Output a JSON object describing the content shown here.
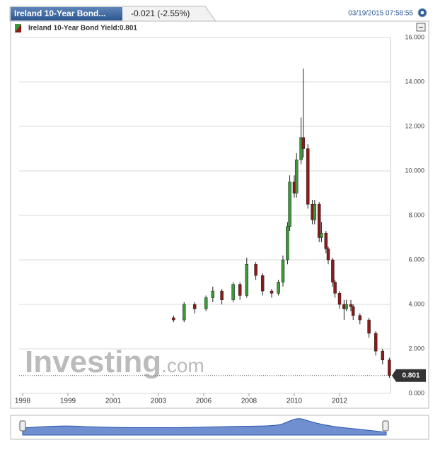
{
  "header": {
    "tab": "Ireland 10-Year Bond...",
    "change": "-0.021 (-2.55%)",
    "timestamp": "03/19/2015 07:58:55"
  },
  "chart_data": {
    "type": "candlestick",
    "legend": "Ireland 10-Year Bond Yield:0.801",
    "last_label": "0.801",
    "watermark": {
      "brand": "Investing",
      "suffix": ".com"
    },
    "up_color": "#3a9a3a",
    "down_color": "#8b1a1a",
    "x": [
      2004.0,
      2004.7,
      2005.4,
      2006.1,
      2006.4,
      2006.8,
      2007.3,
      2007.6,
      2007.9,
      2008.3,
      2008.6,
      2009.0,
      2009.3,
      2009.5,
      2009.7,
      2009.8,
      2010.0,
      2010.1,
      2010.3,
      2010.4,
      2010.6,
      2010.8,
      2010.9,
      2011.1,
      2011.2,
      2011.4,
      2011.5,
      2011.7,
      2011.8,
      2012.0,
      2012.2,
      2012.3,
      2012.5,
      2012.6,
      2012.9,
      2013.3,
      2013.6,
      2013.9,
      2014.2
    ],
    "open": [
      3.4,
      3.3,
      4.0,
      3.8,
      4.3,
      4.6,
      4.2,
      4.9,
      4.4,
      5.8,
      5.3,
      4.6,
      4.5,
      5.0,
      6.0,
      7.5,
      9.5,
      9.0,
      10.5,
      11.5,
      11.0,
      8.5,
      7.8,
      8.5,
      7.0,
      7.2,
      6.5,
      6.0,
      5.0,
      4.5,
      4.0,
      3.8,
      4.0,
      3.9,
      3.5,
      3.3,
      2.7,
      1.9,
      1.5
    ],
    "high": [
      3.5,
      4.1,
      4.1,
      4.4,
      4.8,
      4.7,
      5.0,
      5.0,
      6.1,
      5.9,
      5.4,
      4.7,
      5.1,
      6.2,
      7.7,
      9.8,
      9.8,
      10.8,
      12.4,
      14.6,
      11.2,
      8.7,
      8.7,
      8.6,
      7.7,
      7.3,
      6.6,
      6.1,
      5.1,
      4.6,
      4.2,
      4.2,
      4.2,
      4.0,
      3.6,
      3.4,
      2.8,
      2.0,
      1.6
    ],
    "low": [
      3.2,
      3.2,
      3.6,
      3.7,
      4.1,
      4.0,
      4.1,
      4.2,
      4.3,
      5.1,
      4.4,
      4.3,
      4.4,
      4.8,
      5.8,
      7.3,
      8.8,
      8.8,
      10.3,
      10.6,
      8.3,
      7.6,
      7.6,
      6.8,
      6.8,
      6.3,
      5.8,
      4.8,
      4.3,
      3.8,
      3.3,
      3.7,
      3.7,
      3.3,
      3.1,
      2.5,
      1.7,
      1.3,
      0.7
    ],
    "close": [
      3.3,
      4.0,
      3.8,
      4.3,
      4.6,
      4.2,
      4.9,
      4.4,
      5.8,
      5.3,
      4.6,
      4.5,
      5.0,
      6.0,
      7.5,
      9.5,
      9.0,
      10.5,
      11.5,
      11.0,
      8.5,
      7.8,
      8.5,
      7.0,
      7.2,
      6.5,
      6.0,
      5.0,
      4.5,
      4.0,
      3.8,
      4.0,
      3.9,
      3.5,
      3.3,
      2.7,
      1.9,
      1.5,
      0.801
    ],
    "xticks": [
      1998,
      1999,
      2001,
      2003,
      2006,
      2008,
      2010,
      2012
    ],
    "ylim": [
      0,
      16
    ],
    "yticks": [
      {
        "value": 0,
        "label": "0.000"
      },
      {
        "value": 2,
        "label": "2.000"
      },
      {
        "value": 4,
        "label": "4.000"
      },
      {
        "value": 6,
        "label": "6.000"
      },
      {
        "value": 8,
        "label": "8.000"
      },
      {
        "value": 10,
        "label": "10.000"
      },
      {
        "value": 12,
        "label": "12.000"
      },
      {
        "value": 14,
        "label": "14.000"
      },
      {
        "value": 16,
        "label": "16.000"
      }
    ],
    "grid": true
  }
}
